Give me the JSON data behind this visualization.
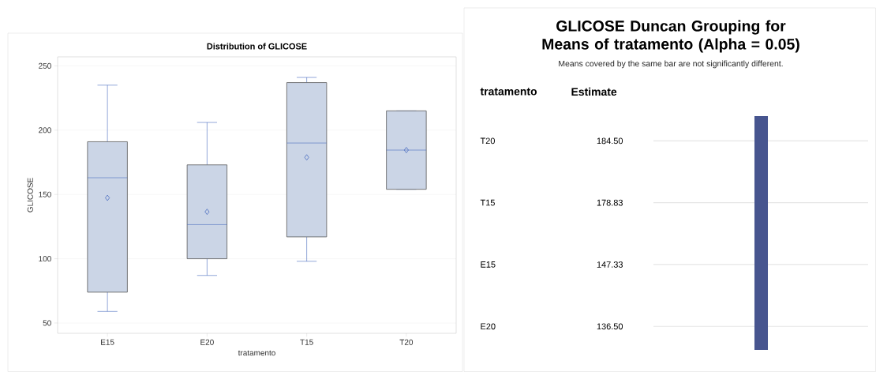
{
  "chart_data": [
    {
      "type": "box",
      "title": "Distribution of GLICOSE",
      "xlabel": "tratamento",
      "ylabel": "GLICOSE",
      "categories": [
        "E15",
        "E20",
        "T15",
        "T20"
      ],
      "color": "#cbd5e6",
      "boxes": [
        {
          "low": 59,
          "q1": 74,
          "median": 163,
          "q3": 191,
          "high": 235,
          "mean": 147.33
        },
        {
          "low": 87,
          "q1": 100,
          "median": 126.5,
          "q3": 173,
          "high": 206,
          "mean": 136.5
        },
        {
          "low": 98,
          "q1": 117,
          "median": 190,
          "q3": 237,
          "high": 241,
          "mean": 178.83
        },
        {
          "low": 154,
          "q1": 154,
          "median": 184.5,
          "q3": 215,
          "high": 215,
          "mean": 184.5
        }
      ],
      "ylim": [
        42,
        257
      ],
      "yticks": [
        50,
        100,
        150,
        200,
        250
      ],
      "grid": "y"
    },
    {
      "type": "other",
      "title": "GLICOSE Duncan Grouping for Means of tratamento (Alpha = 0.05)",
      "subtitle": "Means covered by the same bar are not significantly different.",
      "annotations": [
        "tratamento",
        "Estimate"
      ],
      "categories": [
        "T20",
        "T15",
        "E15",
        "E20"
      ],
      "value_labels": [
        "184.50",
        "178.83",
        "147.33",
        "136.50"
      ]
    }
  ]
}
